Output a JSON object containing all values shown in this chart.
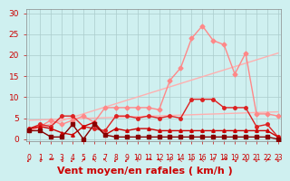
{
  "bg_color": "#cff0f0",
  "grid_color": "#aacccc",
  "xlabel": "Vent moyen/en rafales ( km/h )",
  "xlabel_color": "#cc0000",
  "xlabel_fontsize": 8,
  "tick_color": "#cc0000",
  "yticks": [
    0,
    5,
    10,
    15,
    20,
    25,
    30
  ],
  "xticks": [
    0,
    1,
    2,
    3,
    4,
    5,
    6,
    7,
    8,
    9,
    10,
    11,
    12,
    13,
    14,
    15,
    16,
    17,
    18,
    19,
    20,
    21,
    22,
    23
  ],
  "xlim": [
    -0.3,
    23.3
  ],
  "ylim": [
    -0.5,
    31
  ],
  "line_series": [
    {
      "comment": "diagonal line 1 - light pink, no marker, straight from low-left to top-right",
      "x": [
        0,
        23
      ],
      "y": [
        2.0,
        20.5
      ],
      "color": "#ffb0b0",
      "lw": 1.0,
      "marker": null,
      "ms": 0
    },
    {
      "comment": "diagonal line 2 - light pink, no marker, shallower slope",
      "x": [
        0,
        23
      ],
      "y": [
        4.5,
        6.5
      ],
      "color": "#ffb0b0",
      "lw": 1.0,
      "marker": null,
      "ms": 0
    },
    {
      "comment": "spiky pink line with diamond markers - big peaks at 15-16",
      "x": [
        0,
        1,
        2,
        3,
        4,
        5,
        6,
        7,
        8,
        9,
        10,
        11,
        12,
        13,
        14,
        15,
        16,
        17,
        18,
        19,
        20,
        21,
        22,
        23
      ],
      "y": [
        2.0,
        3.0,
        4.5,
        3.5,
        4.5,
        5.5,
        4.0,
        7.5,
        7.5,
        7.5,
        7.5,
        7.5,
        7.0,
        14.0,
        17.0,
        24.0,
        27.0,
        23.5,
        22.5,
        15.5,
        20.5,
        6.0,
        6.0,
        5.5
      ],
      "color": "#ff8888",
      "lw": 1.0,
      "marker": "D",
      "ms": 2.5
    },
    {
      "comment": "medium red line with circle markers - moderate values",
      "x": [
        0,
        1,
        2,
        3,
        4,
        5,
        6,
        7,
        8,
        9,
        10,
        11,
        12,
        13,
        14,
        15,
        16,
        17,
        18,
        19,
        20,
        21,
        22,
        23
      ],
      "y": [
        2.5,
        3.5,
        3.0,
        5.5,
        5.5,
        3.0,
        2.5,
        2.0,
        5.5,
        5.5,
        5.0,
        5.5,
        5.0,
        5.5,
        5.0,
        9.5,
        9.5,
        9.5,
        7.5,
        7.5,
        7.5,
        3.0,
        3.5,
        0.5
      ],
      "color": "#dd2222",
      "lw": 1.0,
      "marker": "o",
      "ms": 2.5
    },
    {
      "comment": "dark red line with triangle markers - low values, spiky at start",
      "x": [
        0,
        1,
        2,
        3,
        4,
        5,
        6,
        7,
        8,
        9,
        10,
        11,
        12,
        13,
        14,
        15,
        16,
        17,
        18,
        19,
        20,
        21,
        22,
        23
      ],
      "y": [
        2.5,
        3.0,
        2.5,
        1.5,
        1.0,
        3.0,
        4.0,
        1.0,
        2.5,
        2.0,
        2.5,
        2.5,
        2.0,
        2.0,
        2.0,
        2.0,
        2.0,
        2.0,
        2.0,
        2.0,
        2.0,
        2.0,
        2.0,
        0.5
      ],
      "color": "#cc0000",
      "lw": 1.0,
      "marker": "^",
      "ms": 2.5
    },
    {
      "comment": "very dark red/maroon line - lowest values, near 0-2",
      "x": [
        0,
        1,
        2,
        3,
        4,
        5,
        6,
        7,
        8,
        9,
        10,
        11,
        12,
        13,
        14,
        15,
        16,
        17,
        18,
        19,
        20,
        21,
        22,
        23
      ],
      "y": [
        2.0,
        2.0,
        0.5,
        0.5,
        3.5,
        0.0,
        3.5,
        1.0,
        0.5,
        0.5,
        0.5,
        0.5,
        0.5,
        0.5,
        0.5,
        0.5,
        0.5,
        0.5,
        0.5,
        0.5,
        0.5,
        0.5,
        0.5,
        0.0
      ],
      "color": "#880000",
      "lw": 1.0,
      "marker": "s",
      "ms": 2.5
    }
  ],
  "wind_arrows": [
    "↙",
    "↓",
    "→",
    "↓",
    "↙",
    "↗",
    "↖",
    "↖",
    "↙",
    "↙",
    "↑",
    "→",
    "↖",
    "↑",
    "↖",
    "↑",
    "↖",
    "↑",
    "→",
    "↘",
    "↓",
    "↓",
    "↗",
    "↓"
  ],
  "arrow_color": "#cc0000"
}
